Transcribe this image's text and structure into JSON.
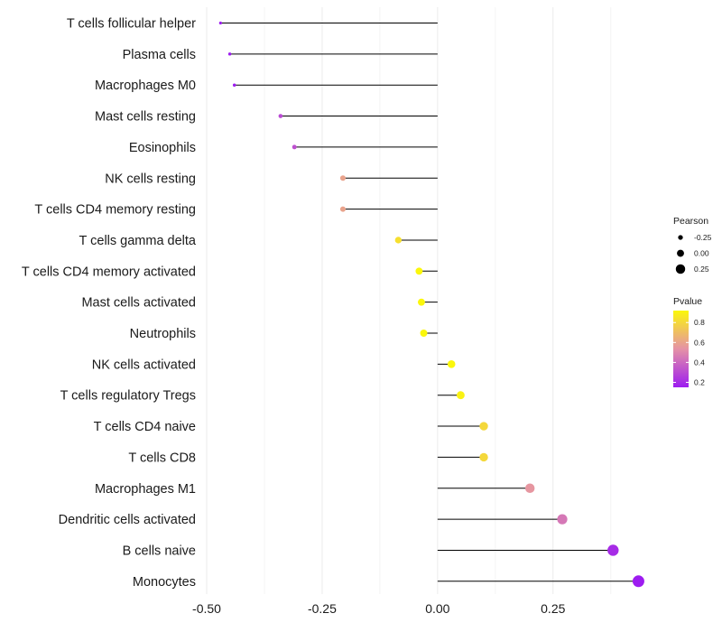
{
  "chart_data": {
    "type": "lollipop",
    "xlim": [
      -0.5,
      0.44
    ],
    "x_ticks": [
      -0.5,
      -0.25,
      0.0,
      0.25
    ],
    "x_tick_labels": [
      "-0.50",
      "-0.25",
      "0.00",
      "0.25"
    ],
    "categories": [
      "T cells follicular helper",
      "Plasma cells",
      "Macrophages M0",
      "Mast cells resting",
      "Eosinophils",
      "NK cells resting",
      "T cells CD4 memory resting",
      "T cells gamma delta",
      "T cells CD4 memory activated",
      "Mast cells activated",
      "Neutrophils",
      "NK cells activated",
      "T cells regulatory  Tregs ",
      "T cells CD4 naive",
      "T cells CD8",
      "Macrophages M1",
      "Dendritic cells activated",
      "B cells naive",
      "Monocytes"
    ],
    "pearson": [
      -0.47,
      -0.45,
      -0.44,
      -0.34,
      -0.31,
      -0.205,
      -0.205,
      -0.085,
      -0.04,
      -0.035,
      -0.03,
      0.03,
      0.05,
      0.1,
      0.1,
      0.2,
      0.27,
      0.38,
      0.435
    ],
    "pvalue": [
      0.04,
      0.08,
      0.08,
      0.3,
      0.32,
      0.6,
      0.6,
      0.83,
      0.92,
      0.92,
      0.93,
      0.93,
      0.9,
      0.8,
      0.8,
      0.55,
      0.45,
      0.2,
      0.1
    ],
    "legend": {
      "size_title": "Pearson",
      "size_items": [
        {
          "label": "-0.25",
          "value": -0.25
        },
        {
          "label": "0.00",
          "value": 0.0
        },
        {
          "label": "0.25",
          "value": 0.25
        }
      ],
      "color_title": "Pvalue",
      "color_range": [
        0.15,
        0.92
      ],
      "color_ticks": [
        {
          "label": "0.8",
          "value": 0.8
        },
        {
          "label": "0.6",
          "value": 0.6
        },
        {
          "label": "0.4",
          "value": 0.4
        },
        {
          "label": "0.2",
          "value": 0.2
        }
      ],
      "color_low": "#9d1cf0",
      "color_mid": "#e592a6",
      "color_high": "#fbf70b"
    },
    "grid": true,
    "title": "",
    "xlabel": "",
    "ylabel": ""
  }
}
